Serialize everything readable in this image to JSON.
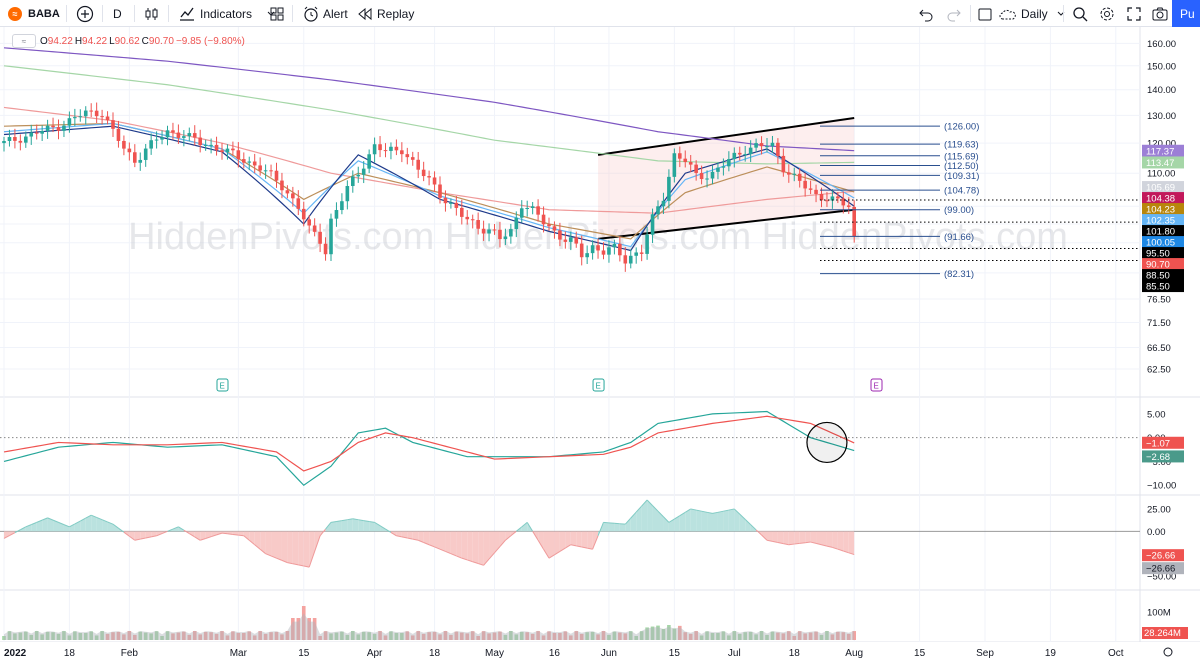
{
  "toolbar": {
    "symbol": "BABA",
    "interval": "D",
    "indicators_label": "Indicators",
    "alert_label": "Alert",
    "replay_label": "Replay",
    "timeframe_label": "Daily",
    "publish_label": "Pu"
  },
  "legend": {
    "open_label": "O",
    "open": "94.22",
    "high_label": "H",
    "high": "94.22",
    "low_label": "L",
    "low": "90.62",
    "close_label": "C",
    "close": "90.70",
    "change": "−9.85 (−9.80%)"
  },
  "watermark": "HiddenPivots.com   HiddenPivots.com   HiddenPivots.com",
  "colors": {
    "up": "#26a69a",
    "down": "#ef5350",
    "grid": "#f0f3fa",
    "fib": "#2a4f8f"
  },
  "chart_data": [
    {
      "type": "candlestick",
      "x_tick_labels": [
        "2022",
        "18",
        "Feb",
        "Mar",
        "15",
        "Apr",
        "18",
        "May",
        "16",
        "Jun",
        "15",
        "Jul",
        "18",
        "Aug",
        "15",
        "Sep",
        "19",
        "Oct"
      ],
      "y_tick_labels": [
        "160.00",
        "150.00",
        "140.00",
        "130.00",
        "120.00",
        "110.00",
        "100.00",
        "95.00",
        "90.00",
        "82.50",
        "76.50",
        "71.50",
        "66.50",
        "62.50"
      ],
      "y_axis_scale": "log",
      "ylim": [
        59.0,
        163.0
      ],
      "earnings_markers": [
        "E",
        "E",
        "E"
      ],
      "fib_levels": [
        {
          "label": "(126.00)",
          "value": 126.0
        },
        {
          "label": "(119.63)",
          "value": 119.63
        },
        {
          "label": "(115.69)",
          "value": 115.69
        },
        {
          "label": "(112.50)",
          "value": 112.5
        },
        {
          "label": "(109.31)",
          "value": 109.31
        },
        {
          "label": "(104.78)",
          "value": 104.78
        },
        {
          "label": "(99.00)",
          "value": 99.0
        },
        {
          "label": "(91.66)",
          "value": 91.66
        },
        {
          "label": "(82.31)",
          "value": 82.31
        }
      ],
      "dotted_levels": [
        {
          "label": "95.50",
          "value": 95.5
        },
        {
          "label": "88.50",
          "value": 88.5
        },
        {
          "label": "85.50",
          "value": 85.5
        },
        {
          "label": "101.80",
          "value": 101.8
        }
      ],
      "price_tags": [
        {
          "label": "117.37",
          "value": 117.37,
          "color": "#9c7fd6"
        },
        {
          "label": "113.47",
          "value": 113.47,
          "color": "#a5d6a7"
        },
        {
          "label": "105.69",
          "value": 105.69,
          "color": "#d1d4dc"
        },
        {
          "label": "104.38",
          "value": 104.38,
          "color": "#c2185b"
        },
        {
          "label": "104.23",
          "value": 104.23,
          "color": "#b8860b"
        },
        {
          "label": "102.35",
          "value": 102.35,
          "color": "#64b5f6"
        },
        {
          "label": "101.80",
          "value": 101.8,
          "color": "#000000"
        },
        {
          "label": "100.05",
          "value": 100.05,
          "color": "#1e88e5"
        },
        {
          "label": "95.50",
          "value": 95.5,
          "color": "#000000"
        },
        {
          "label": "90.70",
          "value": 90.7,
          "color": "#ef5350"
        },
        {
          "label": "88.50",
          "value": 88.5,
          "color": "#000000"
        },
        {
          "label": "85.50",
          "value": 85.5,
          "color": "#000000"
        }
      ],
      "price_path": [
        [
          0,
          120
        ],
        [
          5,
          123
        ],
        [
          10,
          126
        ],
        [
          15,
          131
        ],
        [
          18,
          131
        ],
        [
          20,
          124
        ],
        [
          22,
          118
        ],
        [
          24,
          114
        ],
        [
          26,
          118
        ],
        [
          30,
          124
        ],
        [
          33,
          123
        ],
        [
          36,
          120
        ],
        [
          40,
          118
        ],
        [
          43,
          115
        ],
        [
          47,
          112
        ],
        [
          51,
          106
        ],
        [
          54,
          100
        ],
        [
          56,
          93
        ],
        [
          58,
          91
        ],
        [
          59,
          88
        ],
        [
          60,
          96
        ],
        [
          63,
          105
        ],
        [
          66,
          113
        ],
        [
          68,
          119
        ],
        [
          70,
          117
        ],
        [
          73,
          118
        ],
        [
          76,
          111
        ],
        [
          79,
          106
        ],
        [
          82,
          100
        ],
        [
          85,
          96
        ],
        [
          88,
          94
        ],
        [
          91,
          91
        ],
        [
          93,
          93
        ],
        [
          95,
          101
        ],
        [
          98,
          97
        ],
        [
          101,
          93
        ],
        [
          104,
          90
        ],
        [
          106,
          87
        ],
        [
          108,
          89
        ],
        [
          110,
          88
        ],
        [
          112,
          88
        ],
        [
          114,
          86
        ],
        [
          117,
          88
        ],
        [
          119,
          96
        ],
        [
          121,
          103
        ],
        [
          123,
          116
        ],
        [
          125,
          114
        ],
        [
          127,
          109
        ],
        [
          130,
          110
        ],
        [
          133,
          114
        ],
        [
          136,
          118
        ],
        [
          138,
          119
        ],
        [
          141,
          119
        ],
        [
          143,
          112
        ],
        [
          146,
          107
        ],
        [
          149,
          103
        ],
        [
          151,
          103
        ],
        [
          153,
          101
        ],
        [
          155,
          100
        ],
        [
          156,
          91
        ]
      ],
      "ma_lines": [
        {
          "color": "#7e57c2",
          "path": [
            [
              0,
              158
            ],
            [
              30,
              152
            ],
            [
              60,
              144
            ],
            [
              90,
              135
            ],
            [
              120,
              124
            ],
            [
              140,
              119
            ],
            [
              156,
              117.4
            ]
          ]
        },
        {
          "color": "#a5d6a7",
          "path": [
            [
              0,
              150
            ],
            [
              30,
              142
            ],
            [
              60,
              132
            ],
            [
              90,
              121
            ],
            [
              120,
              114
            ],
            [
              140,
              113
            ],
            [
              156,
              113.5
            ]
          ]
        },
        {
          "color": "#ef9a9a",
          "path": [
            [
              0,
              133
            ],
            [
              20,
              128
            ],
            [
              40,
              120
            ],
            [
              60,
              110
            ],
            [
              80,
              104
            ],
            [
              100,
              99
            ],
            [
              120,
              98
            ],
            [
              140,
              102
            ],
            [
              156,
              104.4
            ]
          ]
        },
        {
          "color": "#bc8f5a",
          "path": [
            [
              0,
              126
            ],
            [
              20,
              127
            ],
            [
              40,
              118
            ],
            [
              55,
              102
            ],
            [
              65,
              110
            ],
            [
              80,
              104
            ],
            [
              100,
              95
            ],
            [
              115,
              91
            ],
            [
              125,
              104
            ],
            [
              140,
              112
            ],
            [
              156,
              104.2
            ]
          ]
        },
        {
          "color": "#64b5f6",
          "path": [
            [
              0,
              124
            ],
            [
              20,
              127
            ],
            [
              40,
              118
            ],
            [
              55,
              98
            ],
            [
              65,
              114
            ],
            [
              80,
              103
            ],
            [
              100,
              94
            ],
            [
              115,
              89
            ],
            [
              125,
              108
            ],
            [
              140,
              117
            ],
            [
              156,
              102.4
            ]
          ]
        },
        {
          "color": "#1e3a8a",
          "path": [
            [
              0,
              123
            ],
            [
              20,
              126
            ],
            [
              40,
              117
            ],
            [
              55,
              95
            ],
            [
              65,
              116
            ],
            [
              80,
              102
            ],
            [
              100,
              93
            ],
            [
              115,
              88
            ],
            [
              125,
              110
            ],
            [
              140,
              118
            ],
            [
              156,
              100
            ]
          ]
        }
      ],
      "channel": {
        "upper": [
          [
            109,
            116
          ],
          [
            156,
            129
          ]
        ],
        "lower": [
          [
            109,
            91
          ],
          [
            156,
            99
          ]
        ]
      }
    },
    {
      "type": "line",
      "panel": "oscillator-1",
      "y_tick_labels": [
        "5.00",
        "0.00",
        "−5.00",
        "−10.00"
      ],
      "ylim": [
        -11,
        7.5
      ],
      "value_tags": [
        {
          "label": "−1.07",
          "value": -1.07,
          "color": "#ef5350"
        },
        {
          "label": "−2.68",
          "value": -2.68,
          "color": "#4a9a8a"
        }
      ],
      "series": [
        {
          "color": "#26a69a",
          "values": [
            [
              0,
              -5
            ],
            [
              10,
              -2
            ],
            [
              20,
              -1
            ],
            [
              30,
              -2
            ],
            [
              40,
              -1.5
            ],
            [
              50,
              -4
            ],
            [
              55,
              -10
            ],
            [
              60,
              -6
            ],
            [
              65,
              1
            ],
            [
              70,
              2
            ],
            [
              75,
              -1
            ],
            [
              85,
              -4
            ],
            [
              90,
              -4
            ],
            [
              100,
              -4
            ],
            [
              110,
              -3
            ],
            [
              115,
              -1
            ],
            [
              120,
              3
            ],
            [
              130,
              5
            ],
            [
              140,
              5.5
            ],
            [
              148,
              0
            ],
            [
              156,
              -2.7
            ]
          ]
        },
        {
          "color": "#ef5350",
          "values": [
            [
              0,
              -3
            ],
            [
              10,
              -1
            ],
            [
              20,
              -1.5
            ],
            [
              30,
              -1.5
            ],
            [
              40,
              -1
            ],
            [
              50,
              -3
            ],
            [
              55,
              -7
            ],
            [
              60,
              -5
            ],
            [
              65,
              -1
            ],
            [
              70,
              1
            ],
            [
              75,
              0
            ],
            [
              85,
              -3
            ],
            [
              90,
              -4.5
            ],
            [
              100,
              -4
            ],
            [
              110,
              -3.5
            ],
            [
              115,
              -2
            ],
            [
              120,
              1
            ],
            [
              130,
              3
            ],
            [
              140,
              4.5
            ],
            [
              148,
              3
            ],
            [
              156,
              -1.1
            ]
          ]
        }
      ]
    },
    {
      "type": "area",
      "panel": "oscillator-2",
      "y_tick_labels": [
        "25.00",
        "0.00",
        "−50.00"
      ],
      "ylim": [
        -60,
        35
      ],
      "value_tags": [
        {
          "label": "−26.66",
          "value": -26.66,
          "color": "#ef5350"
        },
        {
          "label": "−26.66",
          "value": -26.66,
          "color": "#b0b3bb"
        }
      ],
      "values": [
        [
          0,
          -8
        ],
        [
          4,
          5
        ],
        [
          8,
          15
        ],
        [
          12,
          5
        ],
        [
          16,
          18
        ],
        [
          20,
          8
        ],
        [
          24,
          -10
        ],
        [
          28,
          -5
        ],
        [
          32,
          5
        ],
        [
          36,
          -10
        ],
        [
          40,
          -2
        ],
        [
          44,
          -5
        ],
        [
          48,
          -25
        ],
        [
          52,
          -35
        ],
        [
          56,
          -40
        ],
        [
          58,
          -5
        ],
        [
          60,
          10
        ],
        [
          64,
          14
        ],
        [
          68,
          10
        ],
        [
          72,
          -5
        ],
        [
          76,
          -10
        ],
        [
          80,
          -20
        ],
        [
          84,
          -30
        ],
        [
          88,
          -38
        ],
        [
          92,
          -10
        ],
        [
          96,
          10
        ],
        [
          100,
          -30
        ],
        [
          104,
          -15
        ],
        [
          108,
          -20
        ],
        [
          110,
          10
        ],
        [
          114,
          8
        ],
        [
          118,
          35
        ],
        [
          122,
          10
        ],
        [
          126,
          25
        ],
        [
          130,
          20
        ],
        [
          134,
          25
        ],
        [
          140,
          -10
        ],
        [
          144,
          -15
        ],
        [
          148,
          -12
        ],
        [
          152,
          -18
        ],
        [
          156,
          -26
        ]
      ]
    },
    {
      "type": "bar",
      "panel": "volume",
      "y_tick_labels": [
        "100M"
      ],
      "value_tags": [
        {
          "label": "28.264M",
          "value": 28.264,
          "color": "#ef5350"
        }
      ]
    }
  ]
}
